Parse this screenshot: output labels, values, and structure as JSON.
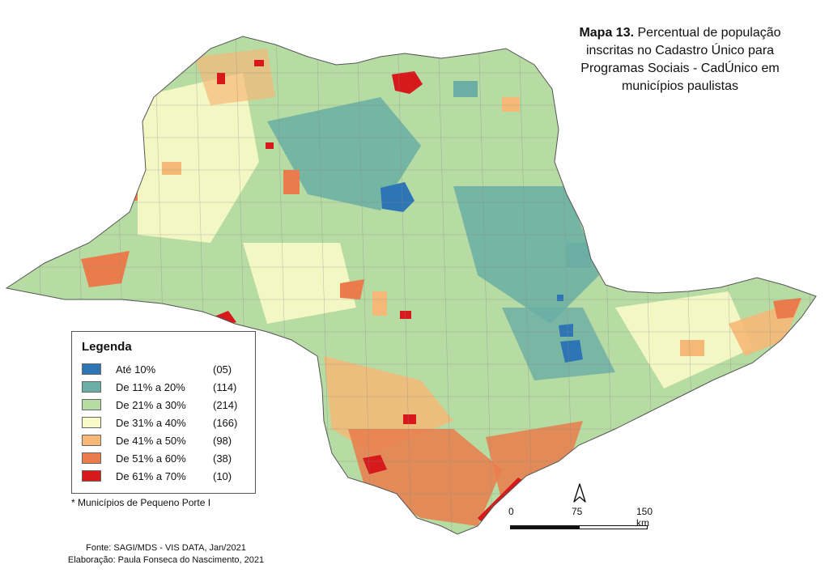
{
  "title": {
    "bold": "Mapa 13.",
    "text": "Percentual de população inscritas no Cadastro Único para Programas Sociais - CadÚnico em municípios paulistas"
  },
  "legend": {
    "title": "Legenda",
    "items": [
      {
        "label": "Até 10%",
        "count": "(05)",
        "color": "#2e75b6"
      },
      {
        "label": "De 11% a 20%",
        "count": "(114)",
        "color": "#6aaea4"
      },
      {
        "label": "De 21% a 30%",
        "count": "(214)",
        "color": "#b6dba3"
      },
      {
        "label": "De 31% a 40%",
        "count": "(166)",
        "color": "#fafac8"
      },
      {
        "label": "De 41% a 50%",
        "count": "(98)",
        "color": "#f6b877"
      },
      {
        "label": "De 51% a 60%",
        "count": "(38)",
        "color": "#ea7c4c"
      },
      {
        "label": "De 61% a 70%",
        "count": "(10)",
        "color": "#d7191c"
      }
    ]
  },
  "footnote": "* Municípios de Pequeno Porte I",
  "source": {
    "line1": "Fonte: SAGI/MDS - VIS DATA, Jan/2021",
    "line2": "Elaboração: Paula Fonseca do Nascimento, 2021"
  },
  "scale": {
    "t0": "0",
    "t1": "75",
    "t2": "150 km"
  },
  "north_icon": "north-arrow-icon"
}
